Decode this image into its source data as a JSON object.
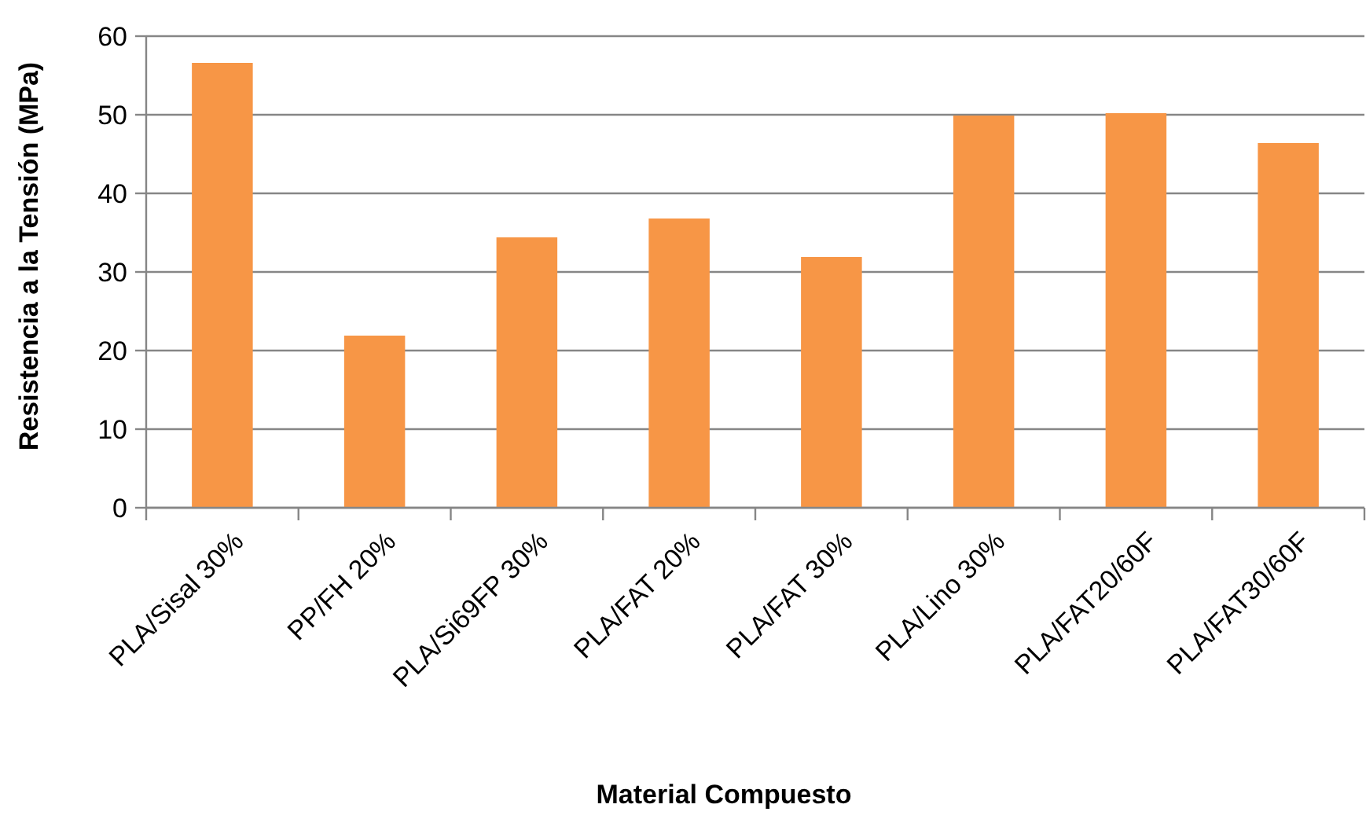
{
  "chart_data": {
    "type": "bar",
    "xlabel": "Material Compuesto",
    "ylabel": "Resistencia a la Tensión (MPa)",
    "categories": [
      "PLA/Sisal 30%",
      "PP/FH 20%",
      "PLA/Si69FP 30%",
      "PLA/FAT 20%",
      "PLA/FAT 30%",
      "PLA/Lino 30%",
      "PLA/FAT20/60F",
      "PLA/FAT30/60F"
    ],
    "values": [
      56.6,
      21.9,
      34.4,
      36.8,
      31.9,
      49.9,
      50.2,
      46.4
    ],
    "color": "#f79646",
    "ylim": [
      0,
      60
    ],
    "yticks": [
      0,
      10,
      20,
      30,
      40,
      50,
      60
    ],
    "grid": "y"
  }
}
